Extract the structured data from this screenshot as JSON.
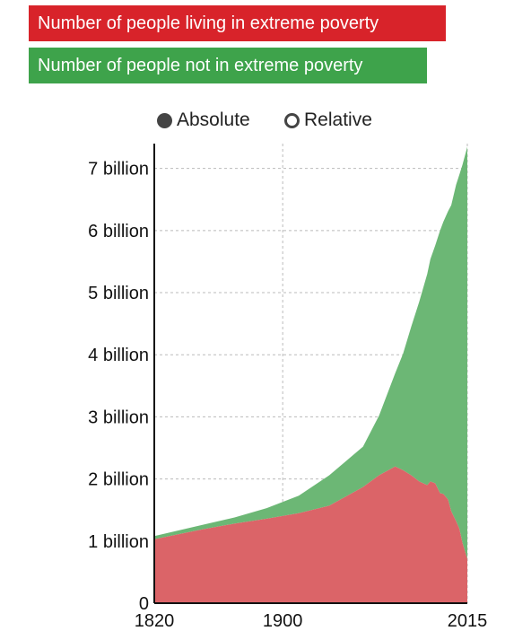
{
  "legend": {
    "items": [
      {
        "label": "Number of people living in extreme poverty",
        "color": "#d8232a"
      },
      {
        "label": "Number of people not in extreme poverty",
        "color": "#3ea34b"
      }
    ]
  },
  "toggle": {
    "absolute_label": "Absolute",
    "relative_label": "Relative",
    "selected": "Absolute"
  },
  "chart_data": {
    "type": "area",
    "stacked": true,
    "xlim": [
      1820,
      2015
    ],
    "ylim": [
      0,
      7.4
    ],
    "y_unit": "billion",
    "x_ticks": [
      "1820",
      "1900",
      "2015"
    ],
    "y_ticks": [
      {
        "value": 0,
        "label": "0"
      },
      {
        "value": 1,
        "label": "1 billion"
      },
      {
        "value": 2,
        "label": "2 billion"
      },
      {
        "value": 3,
        "label": "3 billion"
      },
      {
        "value": 4,
        "label": "4 billion"
      },
      {
        "value": 5,
        "label": "5 billion"
      },
      {
        "value": 6,
        "label": "6 billion"
      },
      {
        "value": 7,
        "label": "7 billion"
      }
    ],
    "vertical_gridlines_at": [
      1900,
      2015
    ],
    "x": [
      1820,
      1850,
      1870,
      1890,
      1910,
      1929,
      1950,
      1960,
      1970,
      1975,
      1980,
      1985,
      1990,
      1992,
      1995,
      1998,
      2000,
      2003,
      2005,
      2008,
      2010,
      2012,
      2015
    ],
    "series": [
      {
        "name": "Number of people living in extreme poverty",
        "color": "#db6468",
        "values": [
          1.03,
          1.19,
          1.28,
          1.36,
          1.45,
          1.57,
          1.87,
          2.06,
          2.2,
          2.14,
          2.06,
          1.96,
          1.9,
          1.96,
          1.93,
          1.77,
          1.76,
          1.67,
          1.48,
          1.32,
          1.2,
          0.97,
          0.71
        ]
      },
      {
        "name": "Number of people not in extreme poverty",
        "color": "#6cb775",
        "values": [
          0.05,
          0.07,
          0.1,
          0.17,
          0.28,
          0.49,
          0.65,
          0.96,
          1.5,
          1.88,
          2.39,
          2.89,
          3.4,
          3.58,
          3.83,
          4.23,
          4.38,
          4.64,
          4.93,
          5.42,
          5.7,
          6.09,
          6.64
        ]
      }
    ]
  }
}
